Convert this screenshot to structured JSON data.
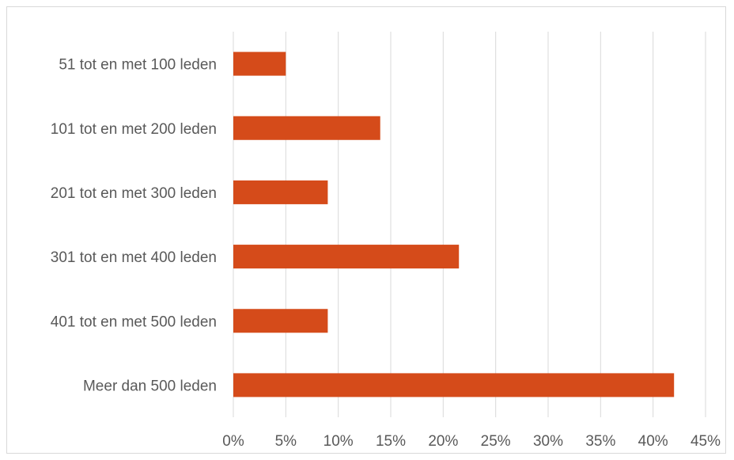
{
  "chart_data": {
    "type": "bar",
    "orientation": "horizontal",
    "categories": [
      "51 tot en met 100 leden",
      "101 tot en met 200 leden",
      "201 tot en met 300 leden",
      "301 tot en met 400 leden",
      "401 tot en met 500 leden",
      "Meer dan 500 leden"
    ],
    "values": [
      5,
      14,
      9,
      21.5,
      9,
      42
    ],
    "xlim": [
      0,
      45
    ],
    "ticks": [
      "0%",
      "5%",
      "10%",
      "15%",
      "20%",
      "25%",
      "30%",
      "35%",
      "40%",
      "45%"
    ],
    "grid": true,
    "color": "#d54b1a",
    "gridColor": "#d9d9d9",
    "title": "",
    "xlabel": "",
    "ylabel": ""
  }
}
